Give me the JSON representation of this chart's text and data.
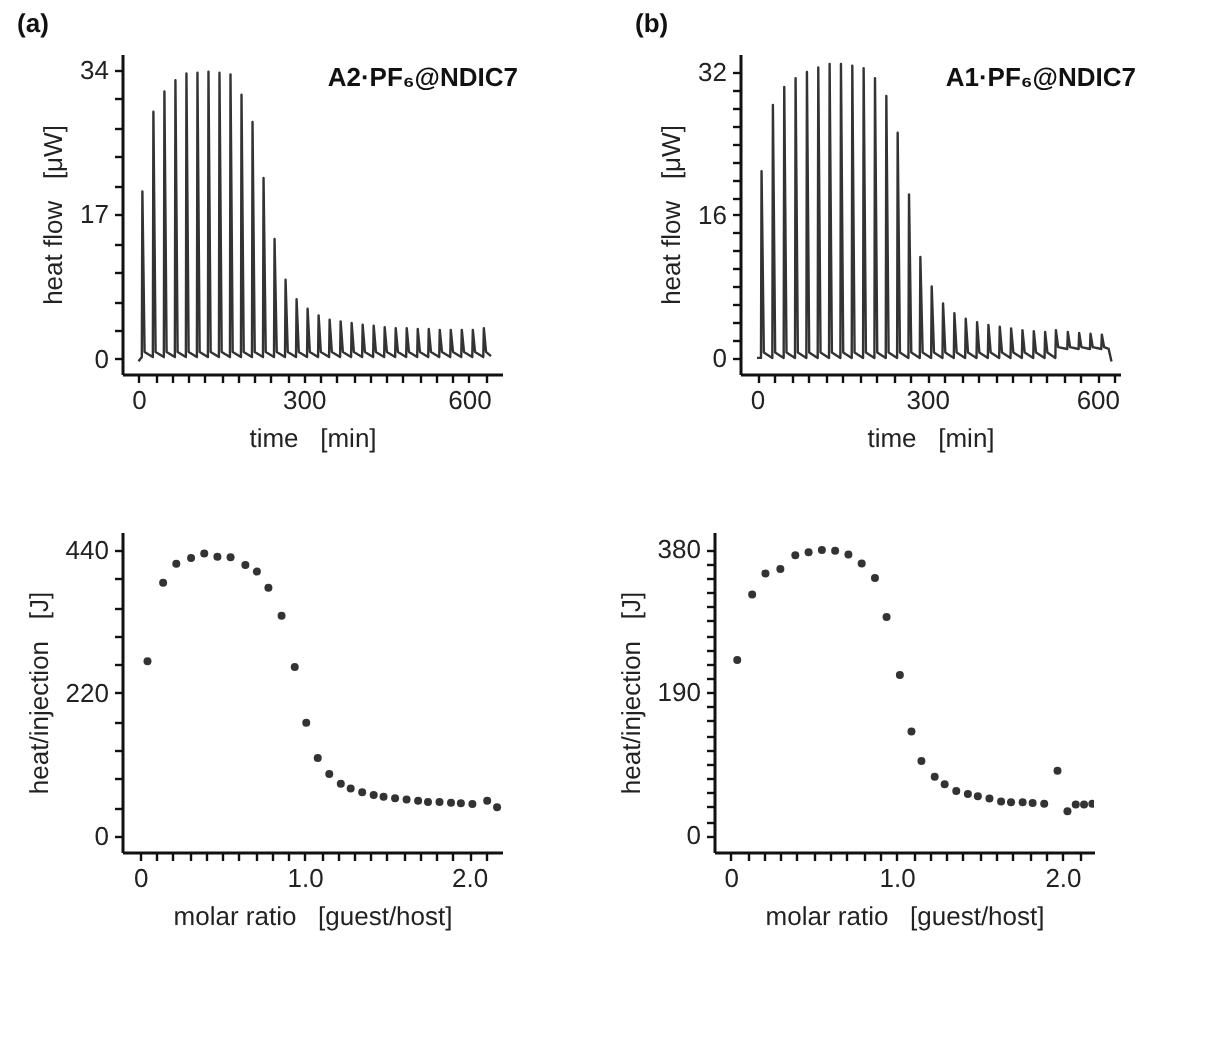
{
  "chart_data": [
    {
      "type": "line",
      "title": "(a)",
      "xlabel": "time   [min]",
      "ylabel": "heat flow   [μW]",
      "annotations": [
        "A2·PF₆@NDIC7"
      ],
      "xlim": [
        -30,
        660
      ],
      "ylim": [
        -1.8,
        35.9
      ],
      "xticks": [
        0,
        {
          "value": 30,
          "label": null
        },
        {
          "value": 60,
          "label": null
        },
        {
          "value": 90,
          "label": null
        },
        {
          "value": 120,
          "label": null
        },
        {
          "value": 150,
          "label": null
        },
        {
          "value": 180,
          "label": null
        },
        {
          "value": 210,
          "label": null
        },
        {
          "value": 240,
          "label": null
        },
        {
          "value": 270,
          "label": null
        },
        300,
        {
          "value": 330,
          "label": null
        },
        {
          "value": 360,
          "label": null
        },
        {
          "value": 390,
          "label": null
        },
        {
          "value": 420,
          "label": null
        },
        {
          "value": 450,
          "label": null
        },
        {
          "value": 480,
          "label": null
        },
        {
          "value": 510,
          "label": null
        },
        {
          "value": 540,
          "label": null
        },
        {
          "value": 570,
          "label": null
        },
        600,
        {
          "value": 630,
          "label": null
        }
      ],
      "yticks": [
        0,
        {
          "value": 3.4,
          "label": null
        },
        {
          "value": 6.8,
          "label": null
        },
        {
          "value": 10.2,
          "label": null
        },
        {
          "value": 13.6,
          "label": null
        },
        17,
        {
          "value": 20.4,
          "label": null
        },
        {
          "value": 23.8,
          "label": null
        },
        {
          "value": 27.2,
          "label": null
        },
        {
          "value": 30.6,
          "label": null
        },
        34
      ],
      "grid": false,
      "line_style": "solid",
      "series": [
        {
          "color": "#333333",
          "x": [
            0,
            6,
            7,
            11,
            26,
            27,
            31,
            46,
            47,
            51,
            66,
            67,
            71,
            86,
            87,
            91,
            106,
            107,
            111,
            126,
            127,
            131,
            146,
            147,
            151,
            166,
            167,
            171,
            186,
            187,
            191,
            206,
            207,
            211,
            226,
            227,
            231,
            246,
            247,
            251,
            266,
            267,
            271,
            286,
            287,
            291,
            306,
            307,
            311,
            326,
            327,
            331,
            346,
            347,
            351,
            366,
            367,
            371,
            386,
            387,
            391,
            406,
            407,
            411,
            426,
            427,
            431,
            446,
            447,
            451,
            466,
            467,
            471,
            486,
            487,
            491,
            506,
            507,
            511,
            526,
            527,
            531,
            546,
            547,
            551,
            566,
            567,
            571,
            586,
            587,
            591,
            606,
            607,
            611,
            626,
            627,
            631,
            640
          ],
          "values": [
            -0.3,
            0.2,
            19.7,
            0.8,
            0.2,
            29.1,
            0.8,
            0.2,
            31.5,
            0.8,
            0.2,
            32.8,
            0.8,
            0.2,
            33.6,
            0.8,
            0.2,
            33.7,
            0.8,
            0.2,
            33.8,
            0.8,
            0.2,
            33.7,
            0.8,
            0.2,
            33.5,
            0.8,
            0.2,
            31.1,
            0.8,
            0.2,
            27.9,
            0.8,
            0.2,
            21.3,
            0.8,
            0.2,
            14.1,
            0.8,
            0.2,
            9.3,
            0.8,
            0.2,
            7.0,
            0.8,
            0.2,
            5.9,
            0.8,
            0.2,
            5.1,
            0.8,
            0.2,
            4.6,
            0.8,
            0.2,
            4.4,
            0.8,
            0.2,
            4.2,
            0.8,
            0.2,
            4.0,
            0.8,
            0.2,
            3.9,
            0.8,
            0.2,
            3.7,
            0.8,
            0.2,
            3.6,
            0.8,
            0.2,
            3.6,
            0.8,
            0.2,
            3.5,
            0.8,
            0.2,
            3.5,
            0.8,
            0.2,
            3.4,
            0.8,
            0.2,
            3.4,
            0.8,
            0.2,
            3.4,
            0.8,
            0.2,
            3.4,
            0.8,
            0.2,
            3.6,
            0.8,
            0.3
          ]
        }
      ]
    },
    {
      "type": "line",
      "title": "(b)",
      "xlabel": "time   [min]",
      "ylabel": "heat flow   [μW]",
      "annotations": [
        "A1·PF₆@NDIC7"
      ],
      "xlim": [
        -30,
        640
      ],
      "ylim": [
        -1.8,
        34
      ],
      "xticks": [
        0,
        {
          "value": 30,
          "label": null
        },
        {
          "value": 60,
          "label": null
        },
        {
          "value": 90,
          "label": null
        },
        {
          "value": 120,
          "label": null
        },
        {
          "value": 150,
          "label": null
        },
        {
          "value": 180,
          "label": null
        },
        {
          "value": 210,
          "label": null
        },
        {
          "value": 240,
          "label": null
        },
        {
          "value": 270,
          "label": null
        },
        300,
        {
          "value": 330,
          "label": null
        },
        {
          "value": 360,
          "label": null
        },
        {
          "value": 390,
          "label": null
        },
        {
          "value": 420,
          "label": null
        },
        {
          "value": 450,
          "label": null
        },
        {
          "value": 480,
          "label": null
        },
        {
          "value": 510,
          "label": null
        },
        {
          "value": 540,
          "label": null
        },
        {
          "value": 570,
          "label": null
        },
        600,
        {
          "value": 630,
          "label": null
        }
      ],
      "yticks": [
        0,
        {
          "value": 2,
          "label": null
        },
        {
          "value": 4,
          "label": null
        },
        {
          "value": 6,
          "label": null
        },
        {
          "value": 8,
          "label": null
        },
        {
          "value": 10,
          "label": null
        },
        {
          "value": 12,
          "label": null
        },
        {
          "value": 14,
          "label": null
        },
        16,
        {
          "value": 18,
          "label": null
        },
        {
          "value": 20,
          "label": null
        },
        {
          "value": 22,
          "label": null
        },
        {
          "value": 24,
          "label": null
        },
        {
          "value": 26,
          "label": null
        },
        {
          "value": 28,
          "label": null
        },
        {
          "value": 30,
          "label": null
        },
        32
      ],
      "grid": false,
      "line_style": "solid",
      "series": [
        {
          "color": "#333333",
          "x": [
            0,
            7,
            8,
            12,
            27,
            28,
            32,
            47,
            48,
            52,
            67,
            68,
            72,
            87,
            88,
            92,
            107,
            108,
            112,
            127,
            128,
            132,
            147,
            148,
            152,
            167,
            168,
            172,
            187,
            188,
            192,
            207,
            208,
            212,
            227,
            228,
            232,
            247,
            248,
            252,
            267,
            268,
            272,
            287,
            288,
            292,
            307,
            308,
            312,
            327,
            328,
            332,
            347,
            348,
            352,
            367,
            368,
            372,
            387,
            388,
            392,
            407,
            408,
            412,
            427,
            428,
            432,
            447,
            448,
            452,
            467,
            468,
            472,
            487,
            488,
            492,
            507,
            508,
            512,
            526,
            527,
            531,
            547,
            548,
            552,
            567,
            568,
            572,
            587,
            588,
            592,
            607,
            608,
            612,
            620,
            625
          ],
          "values": [
            0.0,
            0.0,
            20.9,
            0.6,
            0.0,
            28.3,
            0.6,
            0.0,
            30.3,
            0.6,
            0.0,
            31.3,
            0.6,
            0.0,
            32.0,
            0.6,
            0.0,
            32.5,
            0.6,
            0.0,
            32.9,
            0.6,
            0.0,
            32.9,
            0.6,
            0.0,
            32.7,
            0.6,
            0.0,
            32.4,
            0.6,
            0.0,
            31.3,
            0.6,
            0.0,
            29.3,
            0.6,
            0.0,
            25.2,
            0.6,
            0.0,
            18.3,
            0.6,
            0.0,
            11.3,
            0.6,
            0.0,
            8.0,
            0.6,
            0.0,
            6.1,
            0.6,
            0.0,
            5.0,
            0.6,
            0.0,
            4.4,
            0.6,
            0.0,
            4.0,
            0.6,
            0.0,
            3.7,
            0.6,
            0.0,
            3.5,
            0.6,
            0.0,
            3.3,
            0.6,
            0.0,
            3.1,
            0.6,
            0.0,
            3.0,
            0.6,
            0.0,
            2.9,
            0.6,
            0.0,
            3.1,
            1.2,
            1.0,
            2.9,
            1.2,
            1.0,
            2.8,
            1.2,
            1.0,
            2.7,
            1.2,
            1.0,
            2.6,
            1.2,
            1.0,
            -0.4
          ]
        }
      ]
    },
    {
      "type": "scatter",
      "xlabel": "molar ratio   [guest/host]",
      "ylabel": "heat/injection   [J]",
      "xlim": [
        -0.11,
        2.2
      ],
      "ylim": [
        -25,
        468
      ],
      "xticks": [
        0,
        {
          "value": 0.1,
          "label": null
        },
        {
          "value": 0.2,
          "label": null
        },
        {
          "value": 0.3,
          "label": null
        },
        {
          "value": 0.4,
          "label": null
        },
        {
          "value": 0.5,
          "label": null
        },
        {
          "value": 0.6,
          "label": null
        },
        {
          "value": 0.7,
          "label": null
        },
        {
          "value": 0.8,
          "label": null
        },
        {
          "value": 0.9,
          "label": null
        },
        {
          "value": 1,
          "label": "1.0"
        },
        {
          "value": 1.1,
          "label": null
        },
        {
          "value": 1.2,
          "label": null
        },
        {
          "value": 1.3,
          "label": null
        },
        {
          "value": 1.4,
          "label": null
        },
        {
          "value": 1.5,
          "label": null
        },
        {
          "value": 1.6,
          "label": null
        },
        {
          "value": 1.7,
          "label": null
        },
        {
          "value": 1.8,
          "label": null
        },
        {
          "value": 1.9,
          "label": null
        },
        {
          "value": 2,
          "label": "2.0"
        },
        {
          "value": 2.1,
          "label": null
        }
      ],
      "yticks": [
        0,
        {
          "value": 44,
          "label": null
        },
        {
          "value": 88,
          "label": null
        },
        {
          "value": 132,
          "label": null
        },
        {
          "value": 176,
          "label": null
        },
        220,
        {
          "value": 264,
          "label": null
        },
        {
          "value": 308,
          "label": null
        },
        {
          "value": 352,
          "label": null
        },
        {
          "value": 396,
          "label": null
        },
        440
      ],
      "grid": false,
      "marker": "circle",
      "series": [
        {
          "color": "#333333",
          "x": [
            0.045,
            0.14,
            0.22,
            0.31,
            0.39,
            0.47,
            0.55,
            0.64,
            0.71,
            0.78,
            0.86,
            0.94,
            1.01,
            1.08,
            1.15,
            1.22,
            1.28,
            1.35,
            1.42,
            1.48,
            1.55,
            1.62,
            1.69,
            1.75,
            1.82,
            1.89,
            1.95,
            2.02,
            2.11,
            2.17
          ],
          "values": [
            269,
            390,
            419,
            428,
            435,
            430,
            429,
            417,
            407,
            382,
            339,
            260,
            174,
            120,
            95,
            80,
            73,
            67,
            63,
            60,
            58,
            56,
            54,
            52,
            52,
            51,
            50,
            49,
            54,
            44
          ]
        }
      ]
    },
    {
      "type": "scatter",
      "xlabel": "molar ratio   [guest/host]",
      "ylabel": "heat/injection   [J]",
      "xlim": [
        -0.1,
        2.19
      ],
      "ylim": [
        -22,
        403
      ],
      "xticks": [
        0,
        {
          "value": 0.1,
          "label": null
        },
        {
          "value": 0.2,
          "label": null
        },
        {
          "value": 0.3,
          "label": null
        },
        {
          "value": 0.4,
          "label": null
        },
        {
          "value": 0.5,
          "label": null
        },
        {
          "value": 0.6,
          "label": null
        },
        {
          "value": 0.7,
          "label": null
        },
        {
          "value": 0.8,
          "label": null
        },
        {
          "value": 0.9,
          "label": null
        },
        {
          "value": 1,
          "label": "1.0"
        },
        {
          "value": 1.1,
          "label": null
        },
        {
          "value": 1.2,
          "label": null
        },
        {
          "value": 1.3,
          "label": null
        },
        {
          "value": 1.4,
          "label": null
        },
        {
          "value": 1.5,
          "label": null
        },
        {
          "value": 1.6,
          "label": null
        },
        {
          "value": 1.7,
          "label": null
        },
        {
          "value": 1.8,
          "label": null
        },
        {
          "value": 1.9,
          "label": null
        },
        {
          "value": 2,
          "label": "2.0"
        },
        {
          "value": 2.1,
          "label": null
        }
      ],
      "yticks": [
        0,
        {
          "value": 19,
          "label": null
        },
        {
          "value": 38,
          "label": null
        },
        {
          "value": 57,
          "label": null
        },
        {
          "value": 76,
          "label": null
        },
        {
          "value": 95,
          "label": null
        },
        {
          "value": 114,
          "label": null
        },
        {
          "value": 133,
          "label": null
        },
        {
          "value": 152,
          "label": null
        },
        {
          "value": 171,
          "label": null
        },
        190,
        {
          "value": 209,
          "label": null
        },
        {
          "value": 228,
          "label": null
        },
        {
          "value": 247,
          "label": null
        },
        {
          "value": 266,
          "label": null
        },
        {
          "value": 285,
          "label": null
        },
        {
          "value": 304,
          "label": null
        },
        {
          "value": 323,
          "label": null
        },
        {
          "value": 342,
          "label": null
        },
        {
          "value": 361,
          "label": null
        },
        380
      ],
      "grid": false,
      "marker": "circle",
      "series": [
        {
          "color": "#333333",
          "x": [
            0.04,
            0.13,
            0.21,
            0.3,
            0.39,
            0.47,
            0.55,
            0.63,
            0.71,
            0.79,
            0.87,
            0.94,
            1.02,
            1.09,
            1.15,
            1.23,
            1.29,
            1.36,
            1.43,
            1.49,
            1.56,
            1.63,
            1.69,
            1.76,
            1.82,
            1.89,
            1.97,
            2.03,
            2.08,
            2.13,
            2.18
          ],
          "values": [
            233,
            320,
            348,
            354,
            372,
            376,
            379,
            378,
            373,
            361,
            342,
            290,
            213,
            138,
            99,
            78,
            68,
            59,
            55,
            52,
            49,
            45,
            44,
            44,
            43,
            42,
            86,
            32,
            41,
            41,
            42
          ]
        }
      ]
    }
  ]
}
